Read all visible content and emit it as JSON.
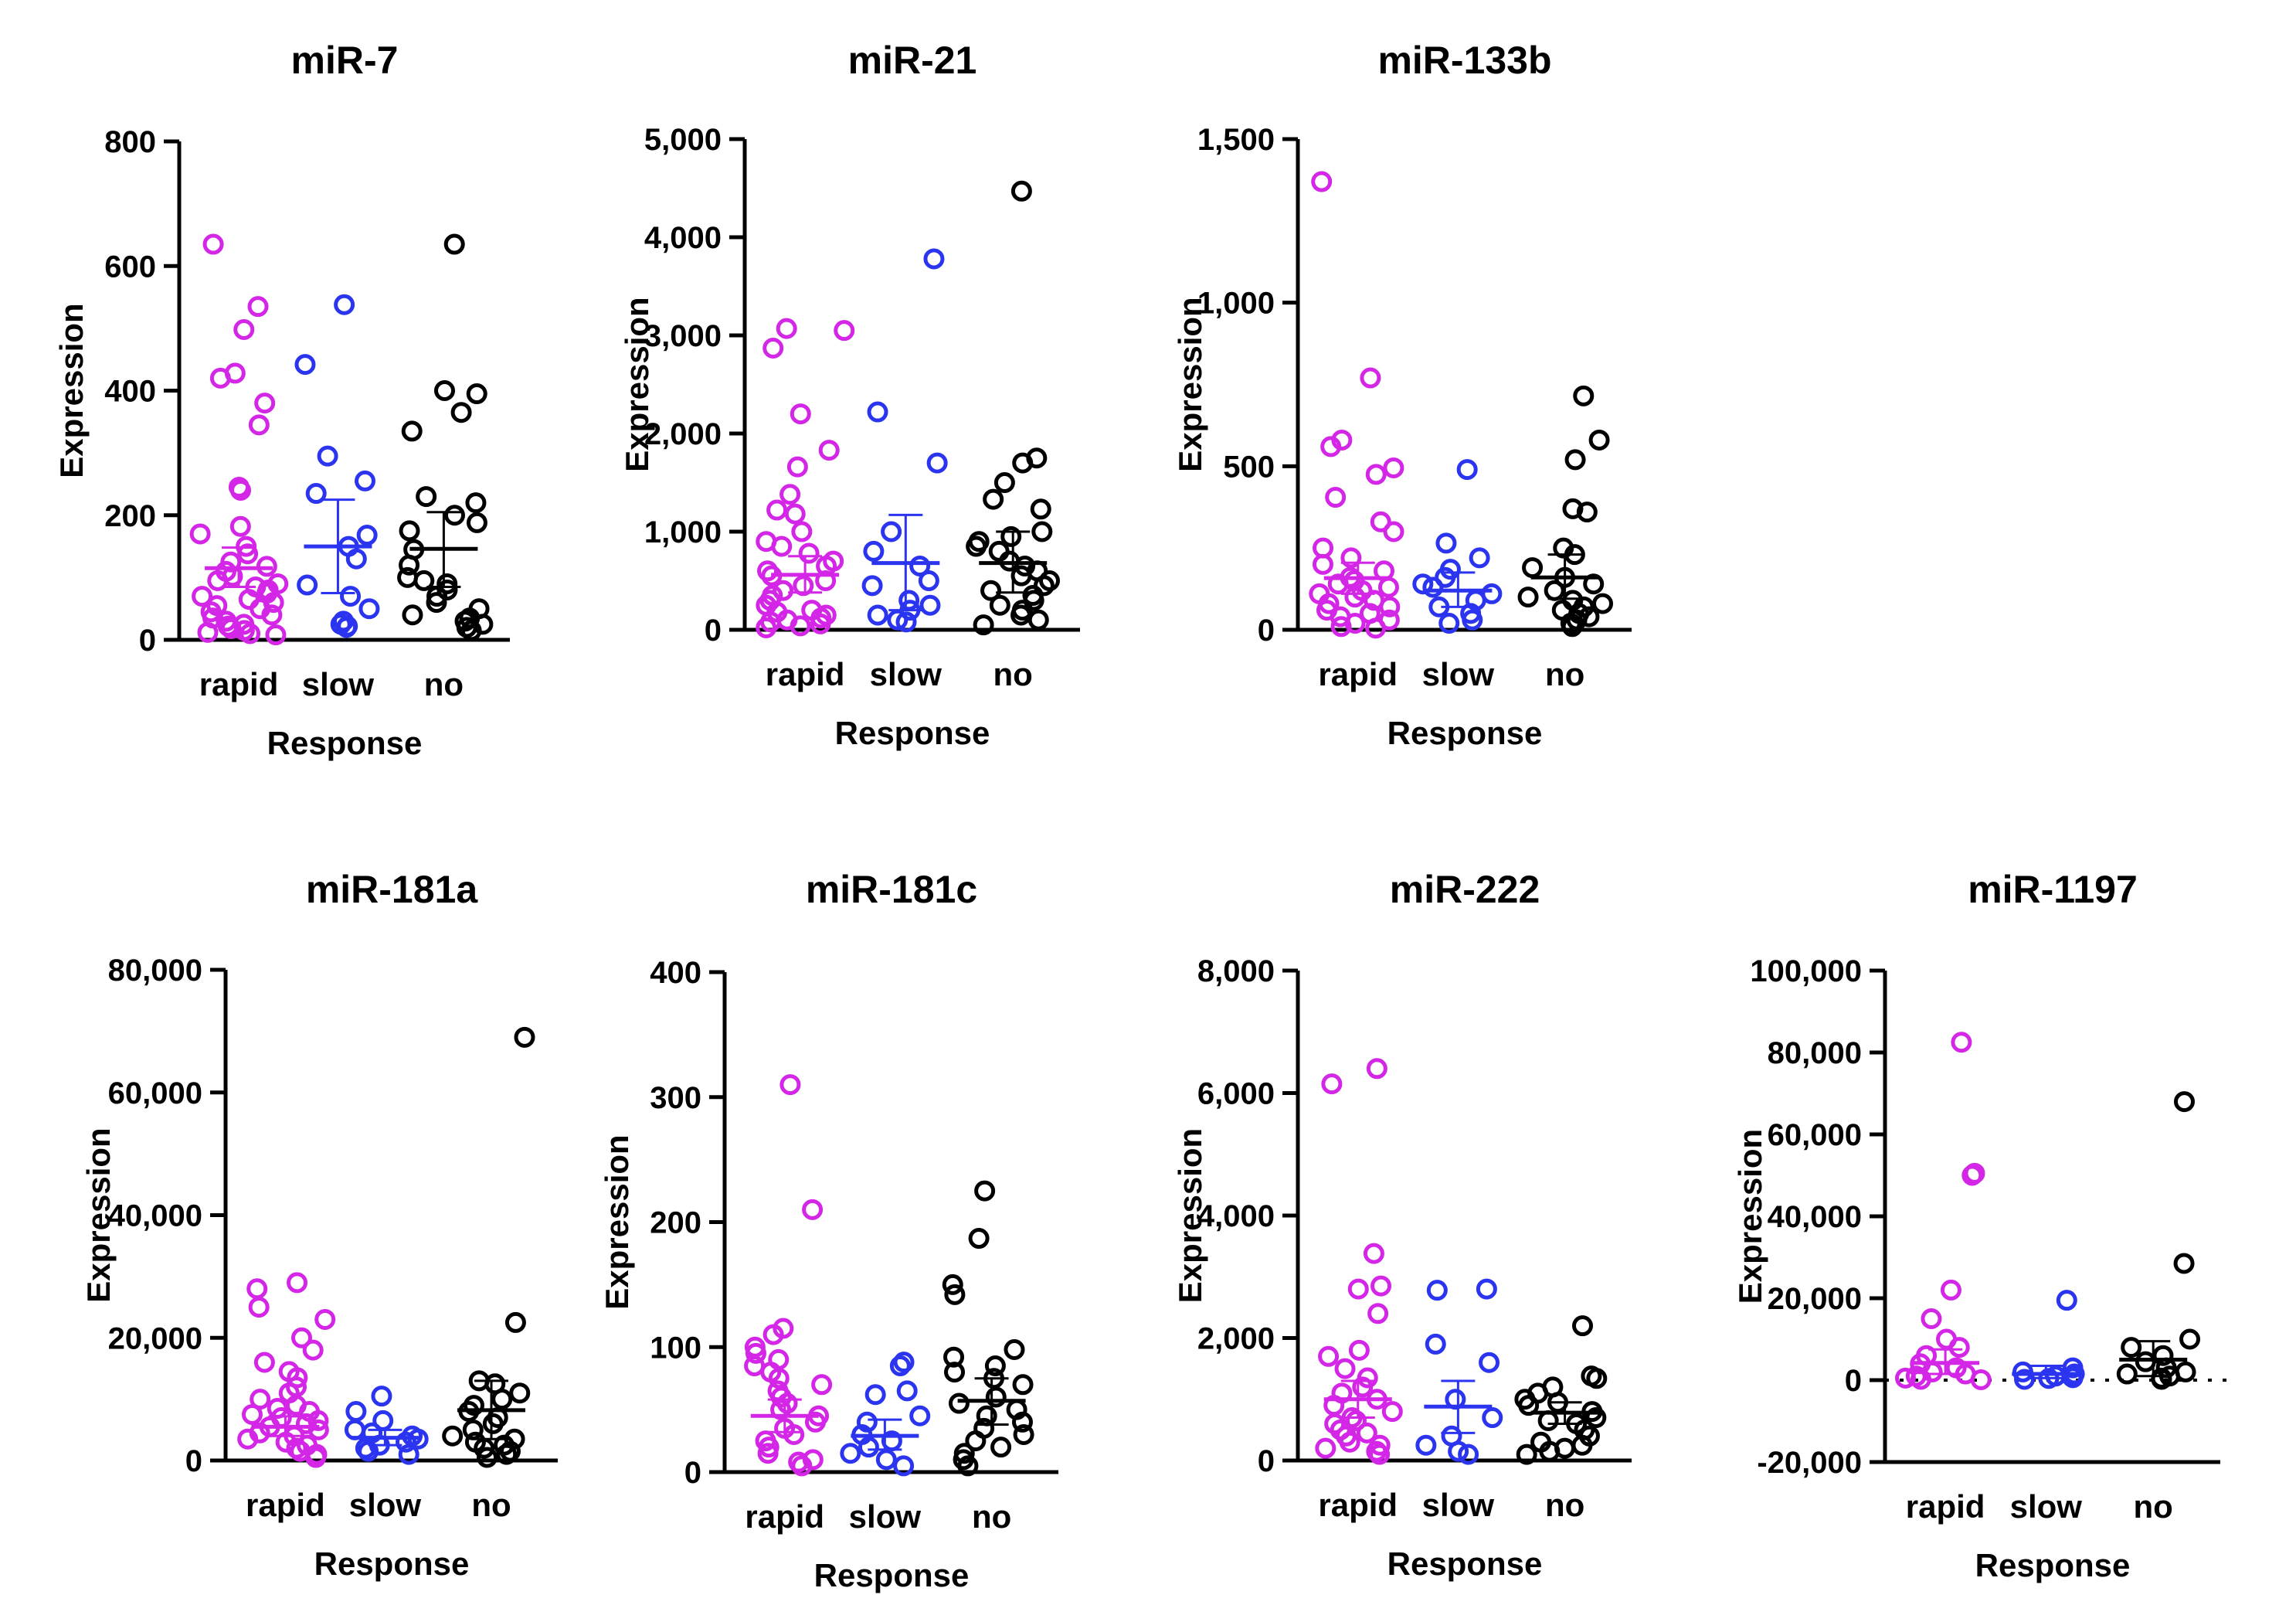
{
  "colors": {
    "rapid": "#d426e6",
    "slow": "#2b35f0",
    "no": "#000000"
  },
  "chart_data": [
    {
      "type": "scatter",
      "title": "miR-7",
      "xlabel": "Response",
      "ylabel": "Expression",
      "categories": [
        "rapid",
        "slow",
        "no"
      ],
      "ylim": [
        0,
        800
      ],
      "yticks": [
        0,
        200,
        400,
        600,
        800
      ],
      "ytick_labels": [
        "0",
        "200",
        "400",
        "600",
        "800"
      ],
      "series": [
        {
          "name": "rapid",
          "mean": 115,
          "err_low": 85,
          "err_high": 148,
          "values": [
            635,
            535,
            498,
            428,
            420,
            380,
            345,
            245,
            240,
            182,
            170,
            150,
            138,
            125,
            118,
            110,
            102,
            95,
            90,
            85,
            80,
            75,
            70,
            65,
            60,
            55,
            50,
            45,
            40,
            35,
            30,
            25,
            22,
            18,
            15,
            12,
            10,
            8
          ]
        },
        {
          "name": "slow",
          "mean": 150,
          "err_low": 75,
          "err_high": 225,
          "values": [
            538,
            442,
            295,
            255,
            235,
            168,
            150,
            130,
            88,
            70,
            50,
            30,
            25,
            22,
            20
          ]
        },
        {
          "name": "no",
          "mean": 146,
          "err_low": 85,
          "err_high": 205,
          "values": [
            635,
            400,
            395,
            365,
            335,
            230,
            220,
            200,
            188,
            175,
            145,
            120,
            100,
            95,
            90,
            80,
            70,
            60,
            50,
            40,
            35,
            30,
            25,
            20,
            15
          ]
        }
      ]
    },
    {
      "type": "scatter",
      "title": "miR-21",
      "xlabel": "Response",
      "ylabel": "Expression",
      "categories": [
        "rapid",
        "slow",
        "no"
      ],
      "ylim": [
        0,
        5000
      ],
      "yticks": [
        0,
        1000,
        2000,
        3000,
        4000,
        5000
      ],
      "ytick_labels": [
        "0",
        "1,000",
        "2,000",
        "3,000",
        "4,000",
        "5,000"
      ],
      "series": [
        {
          "name": "rapid",
          "mean": 560,
          "err_low": 380,
          "err_high": 750,
          "values": [
            3070,
            3050,
            2870,
            2200,
            1830,
            1660,
            1380,
            1220,
            1180,
            1000,
            900,
            850,
            780,
            700,
            650,
            600,
            550,
            500,
            450,
            400,
            350,
            300,
            250,
            200,
            180,
            150,
            120,
            100,
            80,
            60,
            40,
            20
          ]
        },
        {
          "name": "slow",
          "mean": 680,
          "err_low": 200,
          "err_high": 1170,
          "values": [
            3780,
            2220,
            1700,
            1000,
            800,
            650,
            500,
            450,
            300,
            250,
            200,
            150,
            100,
            80
          ]
        },
        {
          "name": "no",
          "mean": 680,
          "err_low": 380,
          "err_high": 1000,
          "values": [
            4470,
            1750,
            1700,
            1500,
            1330,
            1230,
            1000,
            950,
            900,
            850,
            800,
            700,
            650,
            600,
            550,
            500,
            450,
            400,
            350,
            300,
            250,
            200,
            150,
            100,
            50
          ]
        }
      ]
    },
    {
      "type": "scatter",
      "title": "miR-133b",
      "xlabel": "Response",
      "ylabel": "Expression",
      "categories": [
        "rapid",
        "slow",
        "no"
      ],
      "ylim": [
        0,
        1500
      ],
      "yticks": [
        0,
        500,
        1000,
        1500
      ],
      "ytick_labels": [
        "0",
        "500",
        "1,000",
        "1,500"
      ],
      "series": [
        {
          "name": "rapid",
          "mean": 158,
          "err_low": 110,
          "err_high": 205,
          "values": [
            1370,
            770,
            580,
            560,
            495,
            475,
            405,
            330,
            300,
            250,
            220,
            200,
            180,
            160,
            150,
            140,
            130,
            120,
            110,
            100,
            90,
            80,
            70,
            60,
            50,
            40,
            30,
            20,
            10,
            5
          ]
        },
        {
          "name": "slow",
          "mean": 120,
          "err_low": 70,
          "err_high": 175,
          "values": [
            490,
            265,
            220,
            185,
            160,
            140,
            130,
            110,
            90,
            70,
            50,
            30,
            20
          ]
        },
        {
          "name": "no",
          "mean": 160,
          "err_low": 95,
          "err_high": 230,
          "values": [
            715,
            580,
            520,
            370,
            360,
            250,
            230,
            190,
            160,
            140,
            120,
            100,
            90,
            80,
            70,
            60,
            50,
            40,
            30,
            20,
            10
          ]
        }
      ]
    },
    {
      "type": "scatter",
      "title": "miR-181a",
      "xlabel": "Response",
      "ylabel": "Expression",
      "categories": [
        "rapid",
        "slow",
        "no"
      ],
      "ylim": [
        0,
        80000
      ],
      "yticks": [
        0,
        20000,
        40000,
        60000,
        80000
      ],
      "ytick_labels": [
        "0",
        "20,000",
        "40,000",
        "60,000",
        "80,000"
      ],
      "series": [
        {
          "name": "rapid",
          "mean": 5500,
          "err_low": 4000,
          "err_high": 7200,
          "values": [
            29000,
            28000,
            25000,
            23000,
            20000,
            18000,
            16000,
            14500,
            13500,
            12000,
            11000,
            10000,
            9000,
            8500,
            8000,
            7500,
            7000,
            6500,
            6000,
            5500,
            5000,
            4500,
            4000,
            3500,
            3000,
            2500,
            2000,
            1500,
            1000,
            500
          ]
        },
        {
          "name": "slow",
          "mean": 3700,
          "err_low": 2500,
          "err_high": 5000,
          "values": [
            10500,
            8000,
            6500,
            5000,
            4500,
            4000,
            3500,
            3000,
            2500,
            2000,
            1500,
            1000
          ]
        },
        {
          "name": "no",
          "mean": 8200,
          "err_low": 3500,
          "err_high": 13000,
          "values": [
            69000,
            22500,
            13000,
            12500,
            11000,
            10000,
            9000,
            8000,
            7000,
            6000,
            5000,
            4000,
            3500,
            3000,
            2500,
            2000,
            1500,
            1000,
            500
          ]
        }
      ]
    },
    {
      "type": "scatter",
      "title": "miR-181c",
      "xlabel": "Response",
      "ylabel": "Expression",
      "categories": [
        "rapid",
        "slow",
        "no"
      ],
      "ylim": [
        0,
        400
      ],
      "yticks": [
        0,
        100,
        200,
        300,
        400
      ],
      "ytick_labels": [
        "0",
        "100",
        "200",
        "300",
        "400"
      ],
      "series": [
        {
          "name": "rapid",
          "mean": 45,
          "err_low": 32,
          "err_high": 58,
          "values": [
            310,
            210,
            115,
            110,
            100,
            95,
            90,
            85,
            80,
            75,
            70,
            65,
            60,
            55,
            50,
            45,
            40,
            35,
            30,
            25,
            20,
            15,
            10,
            8,
            5
          ]
        },
        {
          "name": "slow",
          "mean": 29,
          "err_low": 18,
          "err_high": 42,
          "values": [
            88,
            85,
            65,
            62,
            45,
            40,
            30,
            25,
            20,
            15,
            10,
            5
          ]
        },
        {
          "name": "no",
          "mean": 57,
          "err_low": 38,
          "err_high": 75,
          "values": [
            225,
            187,
            150,
            142,
            98,
            92,
            85,
            80,
            75,
            70,
            60,
            55,
            50,
            45,
            40,
            35,
            30,
            25,
            20,
            15,
            10,
            5
          ]
        }
      ]
    },
    {
      "type": "scatter",
      "title": "miR-222",
      "xlabel": "Response",
      "ylabel": "Expression",
      "categories": [
        "rapid",
        "slow",
        "no"
      ],
      "ylim": [
        0,
        8000
      ],
      "yticks": [
        0,
        2000,
        4000,
        6000,
        8000
      ],
      "ytick_labels": [
        "0",
        "2,000",
        "4,000",
        "6,000",
        "8,000"
      ],
      "series": [
        {
          "name": "rapid",
          "mean": 1000,
          "err_low": 700,
          "err_high": 1300,
          "values": [
            6400,
            6150,
            3380,
            2850,
            2800,
            2400,
            1800,
            1700,
            1500,
            1350,
            1200,
            1100,
            1000,
            900,
            800,
            700,
            650,
            600,
            500,
            450,
            400,
            300,
            250,
            200,
            150,
            100
          ]
        },
        {
          "name": "slow",
          "mean": 880,
          "err_low": 450,
          "err_high": 1300,
          "values": [
            2800,
            2780,
            1900,
            1600,
            1000,
            700,
            400,
            250,
            150,
            100
          ]
        },
        {
          "name": "no",
          "mean": 780,
          "err_low": 600,
          "err_high": 950,
          "values": [
            2200,
            1380,
            1340,
            1200,
            1100,
            1000,
            950,
            900,
            800,
            700,
            650,
            600,
            500,
            400,
            300,
            250,
            200,
            150,
            100
          ]
        }
      ]
    },
    {
      "type": "scatter",
      "title": "miR-1197",
      "xlabel": "Response",
      "ylabel": "Expression",
      "categories": [
        "rapid",
        "slow",
        "no"
      ],
      "ylim": [
        -20000,
        100000
      ],
      "yticks": [
        -20000,
        0,
        20000,
        40000,
        60000,
        80000,
        100000
      ],
      "ytick_labels": [
        "-20,000",
        "0",
        "20,000",
        "40,000",
        "60,000",
        "80,000",
        "100,000"
      ],
      "zero_line": true,
      "series": [
        {
          "name": "rapid",
          "mean": 4200,
          "err_low": 1500,
          "err_high": 7500,
          "values": [
            82500,
            50500,
            50000,
            22000,
            15000,
            10000,
            8000,
            6000,
            4000,
            3000,
            2000,
            1500,
            1000,
            500,
            200,
            100
          ]
        },
        {
          "name": "slow",
          "mean": 1500,
          "err_low": 500,
          "err_high": 3500,
          "values": [
            19500,
            3000,
            2000,
            1500,
            1000,
            800,
            600,
            400,
            200
          ]
        },
        {
          "name": "no",
          "mean": 5000,
          "err_low": 1000,
          "err_high": 9500,
          "values": [
            68000,
            28500,
            10000,
            8000,
            6000,
            4500,
            3000,
            2000,
            1500,
            1000,
            500,
            200
          ]
        }
      ]
    }
  ]
}
